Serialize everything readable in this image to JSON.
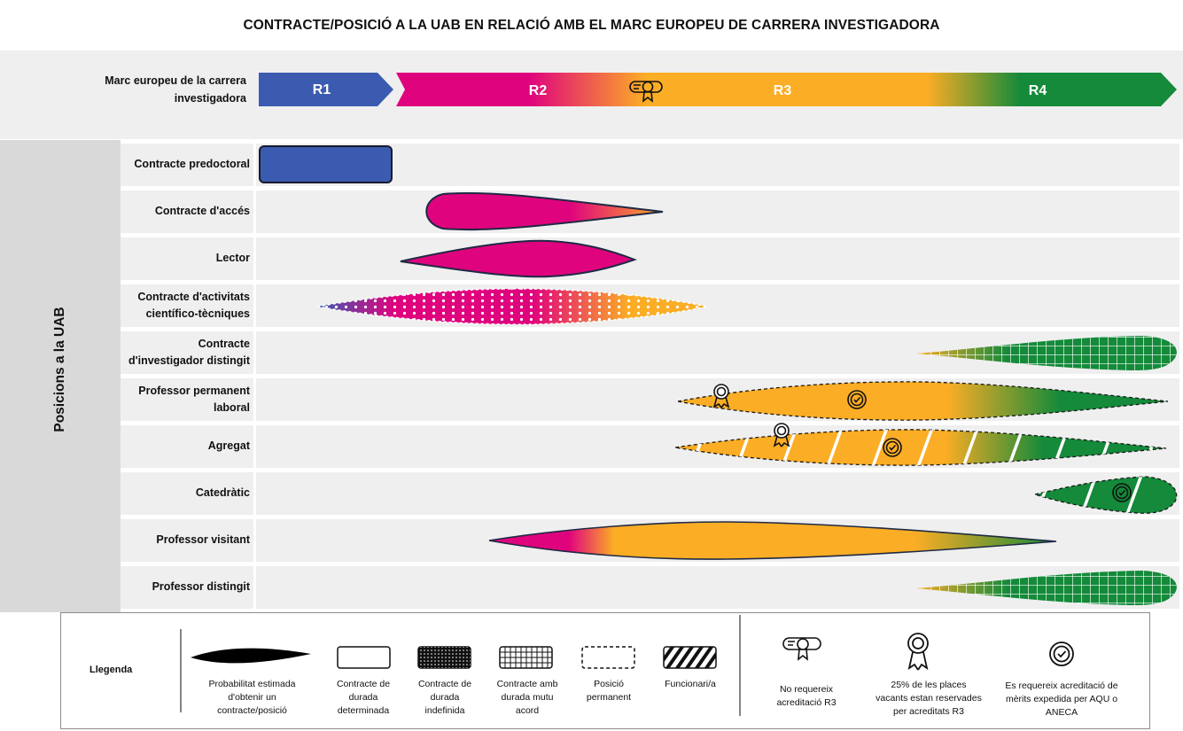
{
  "title": "CONTRACTE/POSICIÓ A LA UAB EN RELACIÓ AMB EL MARC EUROPEU DE CARRERA INVESTIGADORA",
  "framework": {
    "label": "Marc europeu de la carrera investigadora",
    "stages": [
      "R1",
      "R2",
      "R3",
      "R4"
    ]
  },
  "side_label": "Posicions a la UAB",
  "positions": [
    {
      "label": "Contracte predoctoral",
      "contract_type": "determinada"
    },
    {
      "label": "Contracte d'accés",
      "contract_type": "determinada"
    },
    {
      "label": "Lector",
      "contract_type": "determinada"
    },
    {
      "label": "Contracte d'activitats científico-tècniques",
      "contract_type": "indefinida"
    },
    {
      "label": "Contracte d'investigador distingit",
      "contract_type": "durada mutu acord"
    },
    {
      "label": "Professor permanent laboral",
      "contract_type": "posició permanent",
      "badges": [
        "award-ribbon-icon",
        "check-seal-icon"
      ]
    },
    {
      "label": "Agregat",
      "contract_type": "funcionari/a",
      "badges": [
        "award-ribbon-icon",
        "check-seal-icon"
      ]
    },
    {
      "label": "Catedràtic",
      "contract_type": "funcionari/a",
      "badges": [
        "check-seal-icon"
      ]
    },
    {
      "label": "Professor visitant",
      "contract_type": "determinada"
    },
    {
      "label": "Professor distingit",
      "contract_type": "durada mutu acord"
    }
  ],
  "legend": {
    "title": "Llegenda",
    "items": [
      "Probabilitat estimada d'obtenir un contracte/posició",
      "Contracte de durada determinada",
      "Contracte de durada indefinida",
      "Contracte amb durada mutu acord",
      "Posició permanent",
      "Funcionari/a"
    ],
    "badges": [
      {
        "icon": "certificate-icon",
        "text": "No requereix acreditació R3"
      },
      {
        "icon": "award-ribbon-icon",
        "text": "25% de les places vacants estan reservades per acreditats R3"
      },
      {
        "icon": "check-seal-icon",
        "text": "Es requereix acreditació de mèrits expedida per AQU o ANECA"
      }
    ]
  },
  "colors": {
    "R1": "#3b5bb0",
    "R2": "#e0037e",
    "R3": "#fbad25",
    "R4": "#148a3a"
  }
}
